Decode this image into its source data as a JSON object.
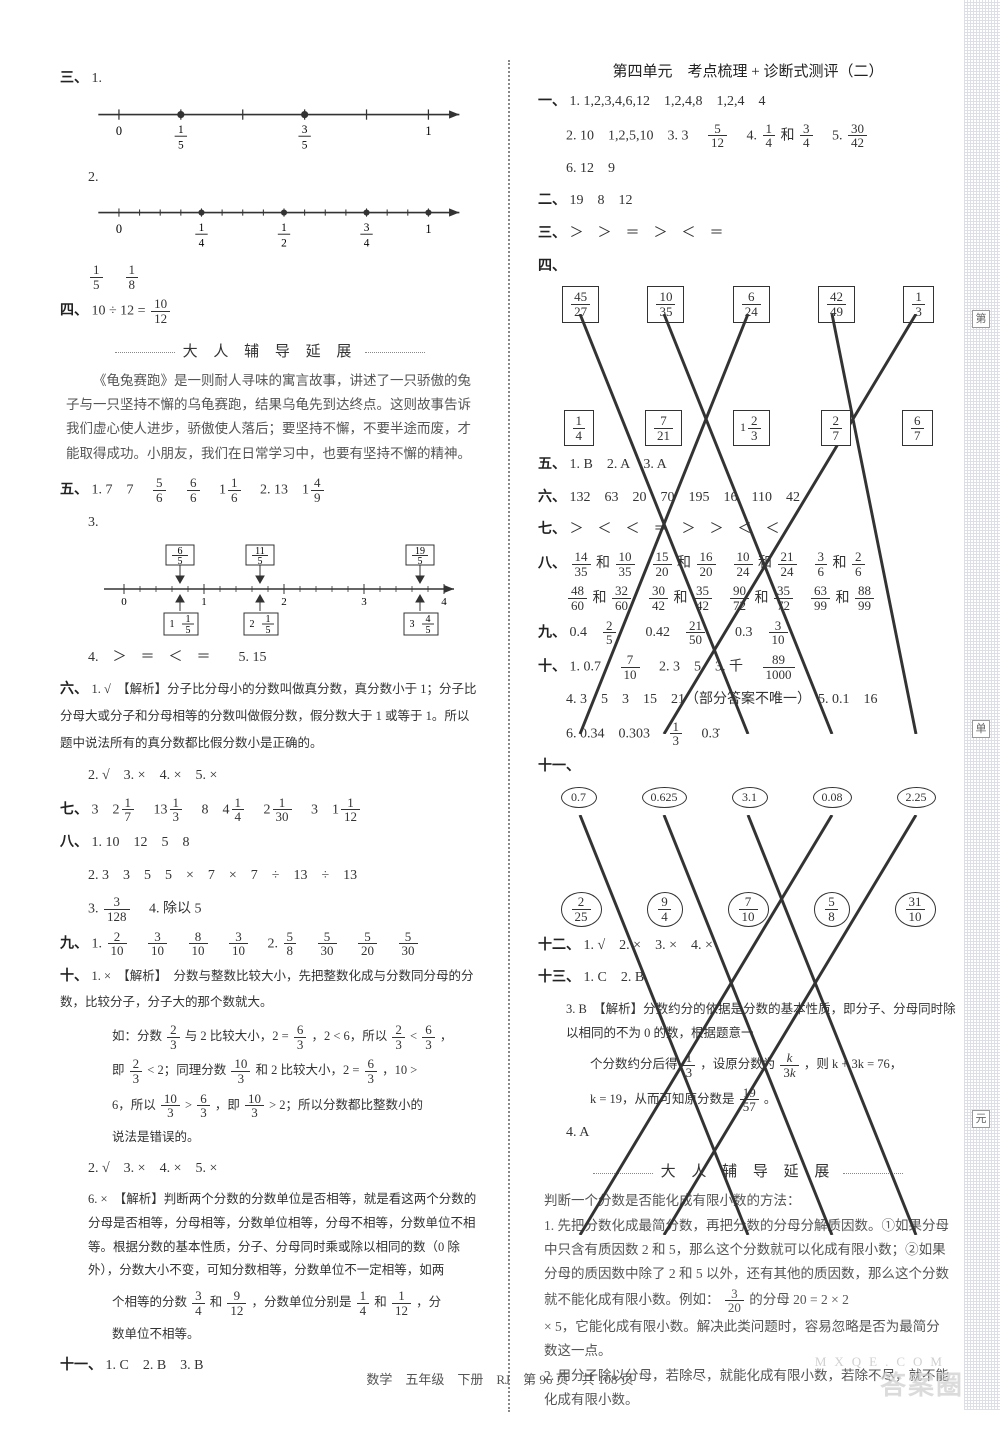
{
  "footer": "数学　五年级　下册　RJ　第 96 页　共 108 页",
  "watermark_main": "答案圈",
  "watermark_sub": "MXQE.COM",
  "side_labels": [
    "第",
    "单",
    "元"
  ],
  "left": {
    "san": {
      "label": "三、",
      "nl1": {
        "ticks": [
          "0",
          "1/5",
          "",
          "3/5",
          "",
          "1"
        ],
        "marks": [
          1,
          3
        ]
      },
      "nl2": {
        "ticks": [
          "0",
          "1/4",
          "1/2",
          "3/4",
          "1"
        ],
        "marks_sub": 4
      },
      "below": [
        "1/5",
        "1/8"
      ]
    },
    "si": {
      "label": "四、",
      "text": "10 ÷ 12 = ",
      "ans": "10/12"
    },
    "band1": "大 人 辅 导 延 展",
    "story": "《龟兔赛跑》是一则耐人寻味的寓言故事，讲述了一只骄傲的兔子与一只坚持不懈的乌龟赛跑，结果乌龟先到达终点。这则故事告诉我们虚心使人进步，骄傲使人落后；要坚持不懈，不要半途而废，才能取得成功。小朋友，我们在日常学习中，也要有坚持不懈的精神。",
    "wu": {
      "label": "五、",
      "l1_a": "1.",
      "l1": [
        "7",
        "7",
        "5/6",
        "6/6",
        "1 1/6"
      ],
      "l1_b": "2.",
      "l1b": [
        "13",
        "1 4/9"
      ],
      "l3_label": "3.",
      "nl3": {
        "top_boxes": [
          "6/5",
          "11/5",
          "19/5"
        ],
        "bot_boxes": [
          "1 1/5",
          "2 1/5",
          "3 4/5"
        ],
        "axis": [
          "0",
          "1",
          "2",
          "3",
          "4"
        ]
      },
      "l4": "4.　＞　＝　＜　＝　　5. 15"
    },
    "liu": {
      "label": "六、",
      "l1": "1. √　【解析】分子比分母小的分数叫做真分数，真分数小于 1；分子比分母大或分子和分母相等的分数叫做假分数，假分数大于 1 或等于 1。所以题中说法所有的真分数都比假分数小是正确的。",
      "l2": "2. √　3. ×　4. ×　5. ×"
    },
    "qi": {
      "label": "七、",
      "items": [
        "3",
        "2 1/7",
        "13 1/3",
        "8",
        "4 1/4",
        "2 1/30",
        "3",
        "1 1/12"
      ]
    },
    "ba": {
      "label": "八、",
      "l1": "1. 10　12　5　8",
      "l2": "2. 3　3　5　5　×　7　×　7　÷　13　÷　13",
      "l3a": "3. ",
      "l3f": "3/128",
      "l3b": "　4. 除以 5"
    },
    "jiu": {
      "label": "九、",
      "l1a": "1. ",
      "g1": [
        "2/10",
        "3/10",
        "8/10",
        "3/10"
      ],
      "l1b": "　2. ",
      "g2": [
        "5/8",
        "5/30",
        "5/20",
        "5/30"
      ]
    },
    "shi": {
      "label": "十、",
      "l1": "1. ×　【解析】　分数与整数比较大小，先把整数化成与分数同分母的分数，比较分子，分子大的那个数就大。",
      "l2a": "如：分数 ",
      "f23": "2/3",
      "l2b": " 与 2 比较大小，2 = ",
      "f63": "6/3",
      "l2c": "，2 < 6，所以 ",
      "l2d": " < ",
      "l2e": "，",
      "l3a": "即 ",
      "l3b": " < 2；同理分数 ",
      "f103": "10/3",
      "l3c": " 和 2 比较大小，2 = ",
      "l3d": "，10 >",
      "l4a": "6，所以 ",
      "l4b": " > ",
      "l4c": "，即 ",
      "l4d": " > 2；所以分数都比整数小的",
      "l5": "说法是错误的。",
      "l6": "2. √　3. ×　4. ×　5. ×",
      "l7": "6. ×　【解析】判断两个分数的分数单位是否相等，就是看这两个分数的分母是否相等，分母相等，分数单位相等，分母不相等，分数单位不相等。根据分数的基本性质，分子、分母同时乘或除以相同的数（0 除外），分数大小不变，可知分数相等，分数单位不一定相等，如两",
      "l8a": "个相等的分数 ",
      "f34": "3/4",
      "l8b": " 和 ",
      "f912": "9/12",
      "l8c": "，分数单位分别是 ",
      "f14": "1/4",
      "l8d": " 和 ",
      "f112": "1/12",
      "l8e": "，分",
      "l9": "数单位不相等。"
    },
    "shiyi": {
      "label": "十一、",
      "text": "1. C　2. B　3. B"
    }
  },
  "right": {
    "unit_title": "第四单元　考点梳理 + 诊断式测评（二）",
    "yi": {
      "label": "一、",
      "l1": "1. 1,2,3,4,6,12　1,2,4,8　1,2,4　4",
      "l2a": "2. 10　1,2,5,10　3. 3　",
      "f512": "5/12",
      "l2b": "　4. ",
      "f14": "1/4",
      "l2c": " 和 ",
      "f34": "3/4",
      "l2d": "　5. ",
      "f3042": "30/42",
      "l3": "6. 12　9"
    },
    "er": {
      "label": "二、",
      "text": "19　8　12"
    },
    "san": {
      "label": "三、",
      "text": "＞　＞　＝　＞　＜　＝"
    },
    "si": {
      "label": "四、",
      "top": [
        "45/27",
        "10/35",
        "6/24",
        "42/49",
        "1/3"
      ],
      "bot": [
        "1/4",
        "7/21",
        "1 2/3",
        "2/7",
        "6/7"
      ],
      "pairs": [
        [
          0,
          2
        ],
        [
          1,
          3
        ],
        [
          2,
          0
        ],
        [
          3,
          4
        ],
        [
          4,
          1
        ]
      ]
    },
    "wu": {
      "label": "五、",
      "text": "1. B　2. A　3. A"
    },
    "liu": {
      "label": "六、",
      "text": "132　63　20　70　195　16　110　42"
    },
    "qi": {
      "label": "七、",
      "text": "＞　＜　＜　＝　＞　＞　＜　＜"
    },
    "ba": {
      "label": "八、",
      "pairs1": [
        [
          "14/35",
          "10/35"
        ],
        [
          "15/20",
          "16/20"
        ],
        [
          "10/24",
          "21/24"
        ],
        [
          "3/6",
          "2/6"
        ]
      ],
      "pairs2": [
        [
          "48/60",
          "32/60"
        ],
        [
          "30/42",
          "35/42"
        ],
        [
          "90/72",
          "35/72"
        ],
        [
          "63/99",
          "88/99"
        ]
      ]
    },
    "jiu": {
      "label": "九、",
      "items": [
        [
          "0.4",
          "2/5"
        ],
        [
          "0.42",
          "21/50"
        ],
        [
          "0.3",
          "3/10"
        ]
      ]
    },
    "shi": {
      "label": "十、",
      "l1a": "1. 0.7　",
      "f710": "7/10",
      "l1b": "　2. 3　5　3. 千　",
      "f89": "89/1000",
      "l2": "4. 3　5　3　15　21（部分答案不唯一）　5. 0.1　16",
      "l3a": "6. 0.34　0.303　",
      "f13": "1/3",
      "l3b": "　0.3̇"
    },
    "shiyi": {
      "label": "十一、",
      "top": [
        "0.7",
        "0.625",
        "3.1",
        "0.08",
        "2.25"
      ],
      "bot": [
        "2/25",
        "9/4",
        "7/10",
        "5/8",
        "31/10"
      ],
      "pairs": [
        [
          0,
          2
        ],
        [
          1,
          3
        ],
        [
          2,
          4
        ],
        [
          3,
          0
        ],
        [
          4,
          1
        ]
      ]
    },
    "shier": {
      "label": "十二、",
      "text": "1. √　2. ×　3. ×　4. ×"
    },
    "shisan": {
      "label": "十三、",
      "l1": "1. C　2. B",
      "l2": "3. B　【解析】分数约分的依据是分数的基本性质，即分子、分母同时除以相同的不为 0 的数，根据题意一",
      "l3a": "个分数约分后得 ",
      "f13_2": "1/3",
      "l3b": "，设原分数为 ",
      "fk3k": "k/3k",
      "l3c": "，则 k + 3k = 76，",
      "l4a": "k = 19，从而可知原分数是 ",
      "f1957": "19/57",
      "l4b": "。",
      "l5": "4. A"
    },
    "band2": "大 人 辅 导 延 展",
    "story2_l1": "判断一个分数是否能化成有限小数的方法：",
    "story2_l2": "1. 先把分数化成最简分数，再把分数的分母分解质因数。①如果分母中只含有质因数 2 和 5，那么这个分数就可以化成有限小数；②如果分母的质因数中除了 2 和 5 以外，还有其他的质因数，那么这个分数",
    "story2_l3a": "就不能化成有限小数。例如：",
    "f320": "3/20",
    "story2_l3b": "的分母 20 = 2 × 2",
    "story2_l4": "× 5，它能化成有限小数。解决此类问题时，容易忽略是否为最简分数这一点。",
    "story2_l5": "2. 用分子除以分母，若除尽，就能化成有限小数，若除不尽，就不能化成有限小数。"
  }
}
